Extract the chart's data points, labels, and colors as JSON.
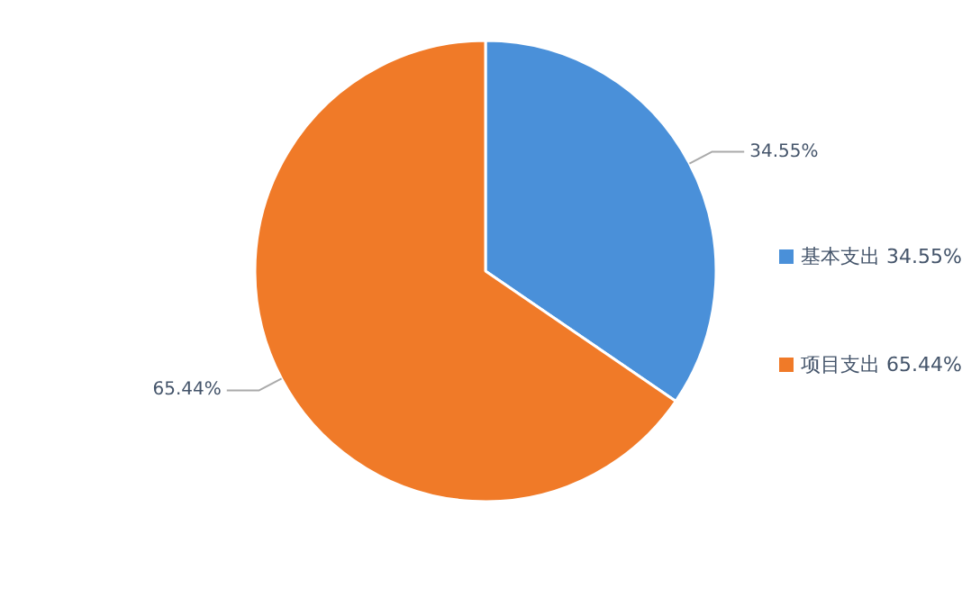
{
  "chart_data": {
    "type": "pie",
    "categories": [
      "基本支出 34.55%",
      "项目支出 65.44%"
    ],
    "values": [
      34.55,
      65.44
    ],
    "colors": [
      "#4a90d9",
      "#f07a28"
    ],
    "value_labels": [
      "34.55%",
      "65.44%"
    ],
    "legend": "right"
  }
}
